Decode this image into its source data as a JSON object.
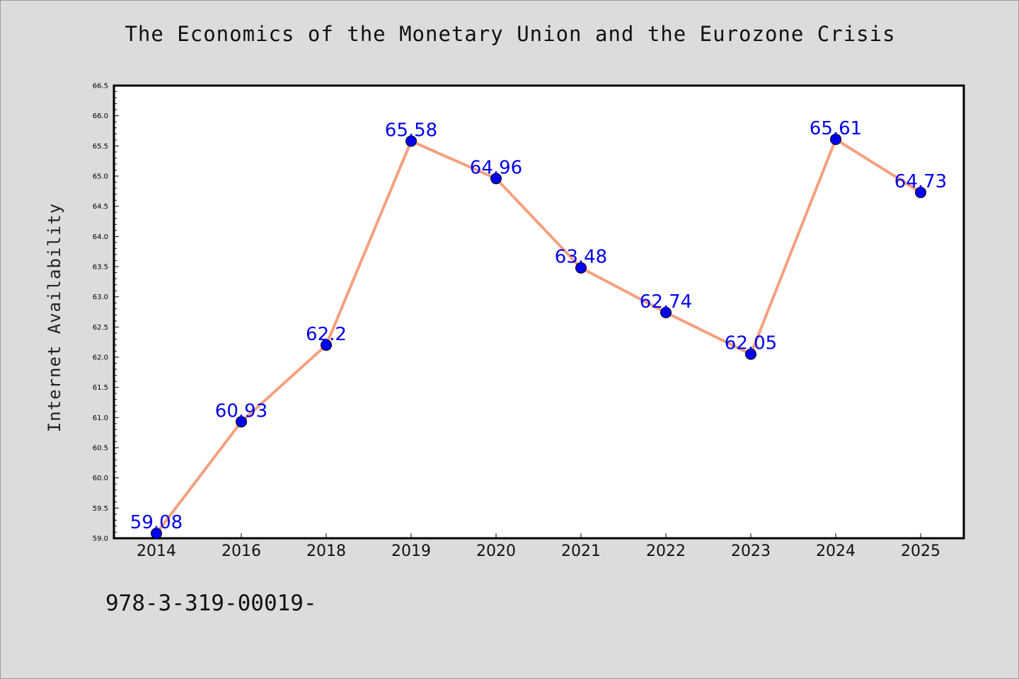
{
  "chart_data": {
    "type": "line",
    "title": "The Economics of the Monetary Union and the Eurozone Crisis",
    "xlabel": "",
    "ylabel": "Internet Availability",
    "categories": [
      "2014",
      "2016",
      "2018",
      "2019",
      "2020",
      "2021",
      "2022",
      "2023",
      "2024",
      "2025"
    ],
    "series": [
      {
        "values": [
          59.08,
          60.93,
          62.2,
          65.58,
          64.96,
          63.48,
          62.74,
          62.05,
          65.61,
          64.73
        ]
      }
    ],
    "data_labels": [
      "59.08",
      "60.93",
      "62.2",
      "65.58",
      "64.96",
      "63.48",
      "62.74",
      "62.05",
      "65.61",
      "64.73"
    ],
    "ylim": [
      59.0,
      66.5
    ],
    "yticks": [
      "59.0",
      "59.5",
      "60.0",
      "60.5",
      "61.0",
      "61.5",
      "62.0",
      "62.5",
      "63.0",
      "63.5",
      "64.0",
      "64.5",
      "65.0",
      "65.5",
      "66.0",
      "66.5"
    ],
    "grid": false,
    "legend": "none",
    "colors": {
      "line": "#f4a07e",
      "marker": "#0000ee",
      "label": "#0000ee",
      "plot_background": "#ffffff",
      "figure_background": "#dcdcdc"
    }
  },
  "footer": {
    "text": "978-3-319-00019-"
  }
}
